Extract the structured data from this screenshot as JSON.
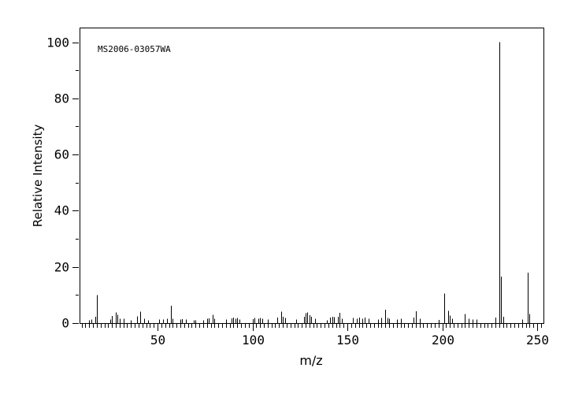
{
  "figure": {
    "background_color": "#ffffff",
    "line_color": "#000000"
  },
  "chart_data": {
    "type": "bar",
    "subtype": "mass-spectrum-stick-plot",
    "annotation": "MS2006-03057WA",
    "xlabel": "m/z",
    "ylabel": "Relative Intensity",
    "xlim": [
      8.9,
      253.3
    ],
    "ylim": [
      0,
      105.2
    ],
    "x_major_ticks": [
      50,
      100,
      150,
      200,
      250
    ],
    "x_minor_tick_start": 10,
    "x_minor_tick_step": 2,
    "y_major_ticks": [
      0,
      20,
      40,
      60,
      80,
      100
    ],
    "y_minor_tick_step": 10,
    "grid": false,
    "legend": "none",
    "peaks": [
      [
        14,
        1.0
      ],
      [
        15,
        1.3
      ],
      [
        17,
        2.3
      ],
      [
        18,
        10.0
      ],
      [
        25,
        1.2
      ],
      [
        26,
        2.5
      ],
      [
        28,
        3.8
      ],
      [
        29,
        3.0
      ],
      [
        30,
        1.5
      ],
      [
        32,
        1.5
      ],
      [
        36,
        1.0
      ],
      [
        39,
        2.4
      ],
      [
        41,
        4.0
      ],
      [
        43,
        1.5
      ],
      [
        45,
        1.0
      ],
      [
        51,
        1.3
      ],
      [
        53,
        1.3
      ],
      [
        55,
        1.5
      ],
      [
        57,
        6.2
      ],
      [
        58,
        1.5
      ],
      [
        62,
        1.2
      ],
      [
        63,
        1.4
      ],
      [
        65,
        1.2
      ],
      [
        69,
        1.0
      ],
      [
        70,
        1.0
      ],
      [
        74,
        1.0
      ],
      [
        76,
        1.5
      ],
      [
        77,
        1.7
      ],
      [
        79,
        3.0
      ],
      [
        80,
        1.5
      ],
      [
        86,
        1.2
      ],
      [
        89,
        1.7
      ],
      [
        90,
        2.0
      ],
      [
        91,
        1.6
      ],
      [
        92,
        1.8
      ],
      [
        93,
        1.2
      ],
      [
        100,
        1.4
      ],
      [
        101,
        1.8
      ],
      [
        103,
        1.5
      ],
      [
        104,
        1.8
      ],
      [
        105,
        1.5
      ],
      [
        108,
        1.2
      ],
      [
        113,
        2.0
      ],
      [
        115,
        4.0
      ],
      [
        116,
        2.2
      ],
      [
        117,
        1.8
      ],
      [
        123,
        1.3
      ],
      [
        127,
        2.2
      ],
      [
        128,
        3.5
      ],
      [
        129,
        3.8
      ],
      [
        130,
        2.8
      ],
      [
        131,
        2.2
      ],
      [
        133,
        1.5
      ],
      [
        139,
        1.0
      ],
      [
        141,
        2.0
      ],
      [
        142,
        2.2
      ],
      [
        143,
        2.1
      ],
      [
        145,
        2.3
      ],
      [
        146,
        3.7
      ],
      [
        147,
        1.5
      ],
      [
        153,
        1.8
      ],
      [
        155,
        1.5
      ],
      [
        156,
        2.0
      ],
      [
        158,
        1.5
      ],
      [
        159,
        2.0
      ],
      [
        161,
        1.5
      ],
      [
        166,
        1.3
      ],
      [
        168,
        1.8
      ],
      [
        170,
        4.8
      ],
      [
        171,
        1.8
      ],
      [
        172,
        1.5
      ],
      [
        176,
        1.3
      ],
      [
        178,
        1.5
      ],
      [
        185,
        2.0
      ],
      [
        186,
        4.2
      ],
      [
        188,
        1.5
      ],
      [
        198,
        1.1
      ],
      [
        201,
        10.5
      ],
      [
        203,
        4.4
      ],
      [
        204,
        2.6
      ],
      [
        205,
        1.6
      ],
      [
        212,
        3.2
      ],
      [
        214,
        1.5
      ],
      [
        216,
        1.3
      ],
      [
        218,
        1.2
      ],
      [
        228,
        2.0
      ],
      [
        230,
        100.0
      ],
      [
        231,
        16.5
      ],
      [
        232,
        2.3
      ],
      [
        242,
        1.2
      ],
      [
        245,
        18.0
      ],
      [
        246,
        3.2
      ]
    ]
  }
}
